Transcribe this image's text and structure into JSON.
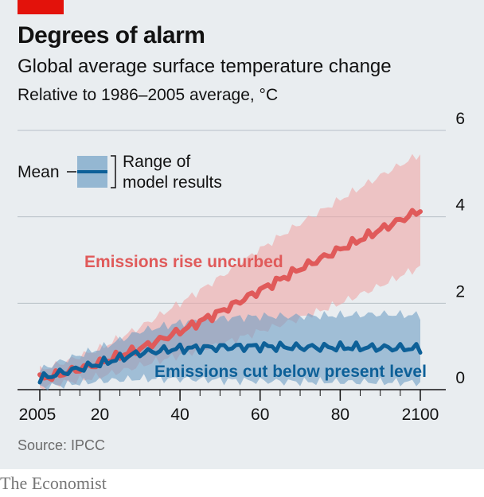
{
  "title": "Degrees of alarm",
  "subtitle": "Global average surface temperature change",
  "units_label": "Relative to 1986–2005 average, °C",
  "source": "Source: IPCC",
  "brand": "The Economist",
  "legend": {
    "mean": "Mean",
    "range_line1": "Range of",
    "range_line2": "model results"
  },
  "colors": {
    "red_line": "#e05a5a",
    "red_band": "#f0a6a6",
    "blue_line": "#0d6098",
    "blue_band": "#6f9fc4",
    "tag": "#e3120b"
  },
  "chart_data": {
    "type": "area",
    "title": "Global average surface temperature change",
    "ylabel": "Relative to 1986–2005 average, °C",
    "ylim": [
      0,
      6
    ],
    "y_ticks": [
      0,
      2,
      4,
      6
    ],
    "x_tick_labels": [
      "2005",
      "20",
      "40",
      "60",
      "80",
      "2100"
    ],
    "x_ticks": [
      2005,
      2020,
      2040,
      2060,
      2080,
      2100
    ],
    "xlim": [
      2000,
      2110
    ],
    "series": [
      {
        "name": "Emissions rise uncurbed",
        "x": [
          2005,
          2010,
          2020,
          2030,
          2040,
          2050,
          2060,
          2070,
          2080,
          2090,
          2100
        ],
        "mean": [
          0.25,
          0.35,
          0.62,
          0.95,
          1.35,
          1.8,
          2.3,
          2.8,
          3.25,
          3.7,
          4.15
        ],
        "low": [
          0.05,
          0.15,
          0.3,
          0.55,
          0.8,
          1.05,
          1.35,
          1.65,
          2.0,
          2.4,
          2.85
        ],
        "high": [
          0.45,
          0.6,
          0.95,
          1.45,
          2.0,
          2.6,
          3.25,
          3.85,
          4.4,
          4.95,
          5.45
        ]
      },
      {
        "name": "Emissions cut below present level",
        "x": [
          2005,
          2010,
          2020,
          2030,
          2040,
          2050,
          2060,
          2070,
          2080,
          2090,
          2100
        ],
        "mean": [
          0.25,
          0.38,
          0.6,
          0.85,
          0.95,
          0.98,
          1.0,
          0.98,
          0.98,
          0.97,
          0.95
        ],
        "low": [
          0.05,
          0.1,
          0.2,
          0.25,
          0.25,
          0.22,
          0.2,
          0.18,
          0.18,
          0.17,
          0.17
        ],
        "high": [
          0.45,
          0.65,
          0.95,
          1.35,
          1.55,
          1.65,
          1.7,
          1.7,
          1.72,
          1.75,
          1.72
        ]
      }
    ],
    "annotations": [
      {
        "text": "Emissions rise uncurbed",
        "series": 0
      },
      {
        "text": "Emissions cut below present level",
        "series": 1
      }
    ]
  }
}
